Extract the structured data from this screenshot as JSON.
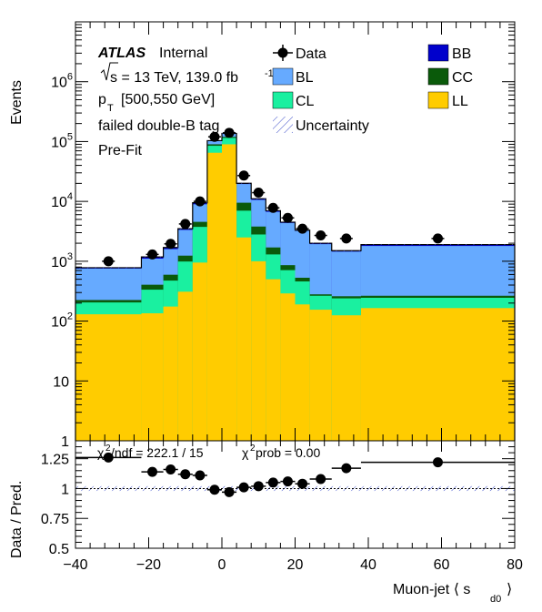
{
  "chart_data": [
    {
      "type": "stacked-histogram",
      "x_scale": "linear",
      "y_scale": "log",
      "xlim": [
        -40,
        80
      ],
      "ylim": [
        1,
        10000000
      ],
      "ylabel": "Events",
      "y_ticks": [
        {
          "value": 1,
          "label": "1"
        },
        {
          "value": 10,
          "label": "10"
        },
        {
          "value": 100,
          "label": "10",
          "sup": "2"
        },
        {
          "value": 1000,
          "label": "10",
          "sup": "3"
        },
        {
          "value": 10000,
          "label": "10",
          "sup": "4"
        },
        {
          "value": 100000,
          "label": "10",
          "sup": "5"
        },
        {
          "value": 1000000,
          "label": "10",
          "sup": "6"
        }
      ],
      "annotations": {
        "atlas": "ATLAS",
        "internal": "Internal",
        "energy": "s = 13 TeV, 139.0 fb",
        "pt_p": "p",
        "pt_sub": "T",
        "pt_range": "[500,550 GeV]",
        "tag": "failed double-B tag",
        "fit": "Pre-Fit"
      },
      "legend_position": "top",
      "legend": [
        {
          "name": "Data",
          "kind": "marker"
        },
        {
          "name": "BB",
          "kind": "fill",
          "color": "#0000cc"
        },
        {
          "name": "BL",
          "kind": "fill",
          "color": "#66aaff"
        },
        {
          "name": "CC",
          "kind": "fill",
          "color": "#0a5a0a"
        },
        {
          "name": "CL",
          "kind": "fill",
          "color": "#1af0a0"
        },
        {
          "name": "LL",
          "kind": "fill",
          "color": "#ffcc00"
        },
        {
          "name": "Uncertainty",
          "kind": "hatch",
          "color": "#4455cc"
        }
      ],
      "bins": [
        -40,
        -22,
        -16,
        -12,
        -8,
        -4,
        0,
        4,
        8,
        12,
        16,
        20,
        24,
        30,
        38,
        80
      ],
      "stacks": [
        {
          "name": "LL",
          "color": "#ffcc00",
          "values": [
            130,
            135,
            175,
            310,
            950,
            65000,
            90000,
            2500,
            1000,
            500,
            290,
            190,
            155,
            125,
            165
          ]
        },
        {
          "name": "CL",
          "color": "#1af0a0",
          "values": [
            75,
            200,
            300,
            680,
            2800,
            20000,
            25000,
            4500,
            1800,
            800,
            420,
            270,
            110,
            115,
            80
          ]
        },
        {
          "name": "CC",
          "color": "#0a5a0a",
          "values": [
            20,
            70,
            120,
            250,
            800,
            5000,
            5000,
            2500,
            1000,
            400,
            150,
            70,
            15,
            20,
            20
          ]
        },
        {
          "name": "BL",
          "color": "#66aaff",
          "values": [
            530,
            700,
            1000,
            2100,
            4400,
            12000,
            15000,
            10000,
            6800,
            5000,
            3500,
            2700,
            1650,
            1190,
            1535
          ]
        },
        {
          "name": "BB",
          "color": "#0000cc",
          "values": [
            25,
            75,
            105,
            160,
            550,
            1500,
            2000,
            600,
            500,
            300,
            140,
            70,
            70,
            50,
            100
          ]
        }
      ],
      "data": {
        "x": [
          -31,
          -19,
          -14,
          -10,
          -6,
          -2,
          2,
          6,
          10,
          14,
          18,
          22,
          27,
          34,
          59
        ],
        "y": [
          1000,
          1300,
          1950,
          4200,
          10000,
          120000,
          140000,
          27000,
          14000,
          7800,
          5300,
          3500,
          2700,
          2400,
          2400
        ]
      },
      "xlabel": "Muon-jet  ⟨ s",
      "xlabel_sub": "d0",
      "xlabel_end": "⟩",
      "x_ticks": [
        -40,
        -20,
        0,
        20,
        40,
        60,
        80
      ]
    },
    {
      "type": "ratio",
      "ylabel": "Data / Pred.",
      "ylim": [
        0.5,
        1.4
      ],
      "y_ticks": [
        {
          "value": 0.5,
          "label": "0.5"
        },
        {
          "value": 0.75,
          "label": "0.75"
        },
        {
          "value": 1,
          "label": "1"
        },
        {
          "value": 1.25,
          "label": "1.25"
        }
      ],
      "reference_line": 1,
      "stat_text": {
        "chi": "χ",
        "chi_sup": "2",
        "ndf": "/ndf = 222.1 / 15",
        "prob_chi": "χ",
        "prob_sup": "2",
        "prob": "prob = 0.00"
      },
      "uncertainty_halfwidth": 0.02,
      "points": {
        "x": [
          -31,
          -19,
          -14,
          -10,
          -6,
          -2,
          2,
          6,
          10,
          14,
          18,
          22,
          27,
          34,
          59
        ],
        "y": [
          1.26,
          1.14,
          1.16,
          1.12,
          1.11,
          0.99,
          0.97,
          1.01,
          1.02,
          1.05,
          1.06,
          1.04,
          1.08,
          1.17,
          1.22
        ],
        "err": [
          0.03,
          0.02,
          0.02,
          0.01,
          0.01,
          0.005,
          0.005,
          0.01,
          0.01,
          0.01,
          0.01,
          0.01,
          0.015,
          0.015,
          0.02
        ]
      },
      "x_ticks": [
        -40,
        -20,
        0,
        20,
        40,
        60,
        80
      ]
    }
  ]
}
